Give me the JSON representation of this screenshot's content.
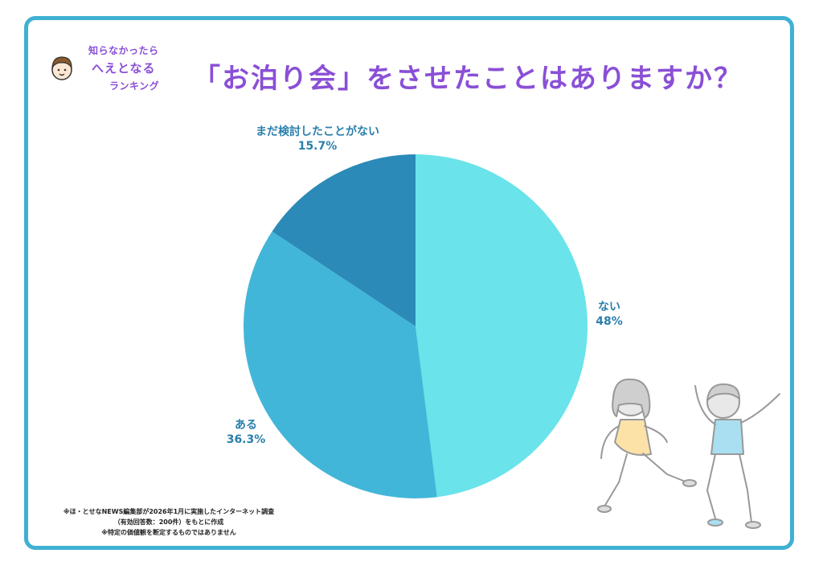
{
  "logo": {
    "line1": "知らなかったら",
    "line2": "へえとなる",
    "line3": "ランキング",
    "icon": "boy-face-icon"
  },
  "title": "「お泊り会」をさせたことはありますか？",
  "chart_data": {
    "type": "pie",
    "title": "「お泊り会」をさせたことはありますか？",
    "slices": [
      {
        "label": "ない",
        "value": 48,
        "display": "48%",
        "color": "#6ae3ea"
      },
      {
        "label": "ある",
        "value": 36.3,
        "display": "36.3%",
        "color": "#42b6d8"
      },
      {
        "label": "まだ検討したことがない",
        "value": 15.7,
        "display": "15.7%",
        "color": "#2b8ab8"
      }
    ],
    "start": "top",
    "direction": "clockwise"
  },
  "footnote": {
    "line1": "※ほ・とせなNEWS編集部が2026年1月に実施したインターネット調査",
    "line2": "（有効回答数：200件）をもとに作成",
    "line3": "※特定の価値観を断定するものではありません"
  },
  "colors": {
    "border": "#3fb1d3",
    "title": "#8a4fd6",
    "label": "#2a7fab"
  }
}
